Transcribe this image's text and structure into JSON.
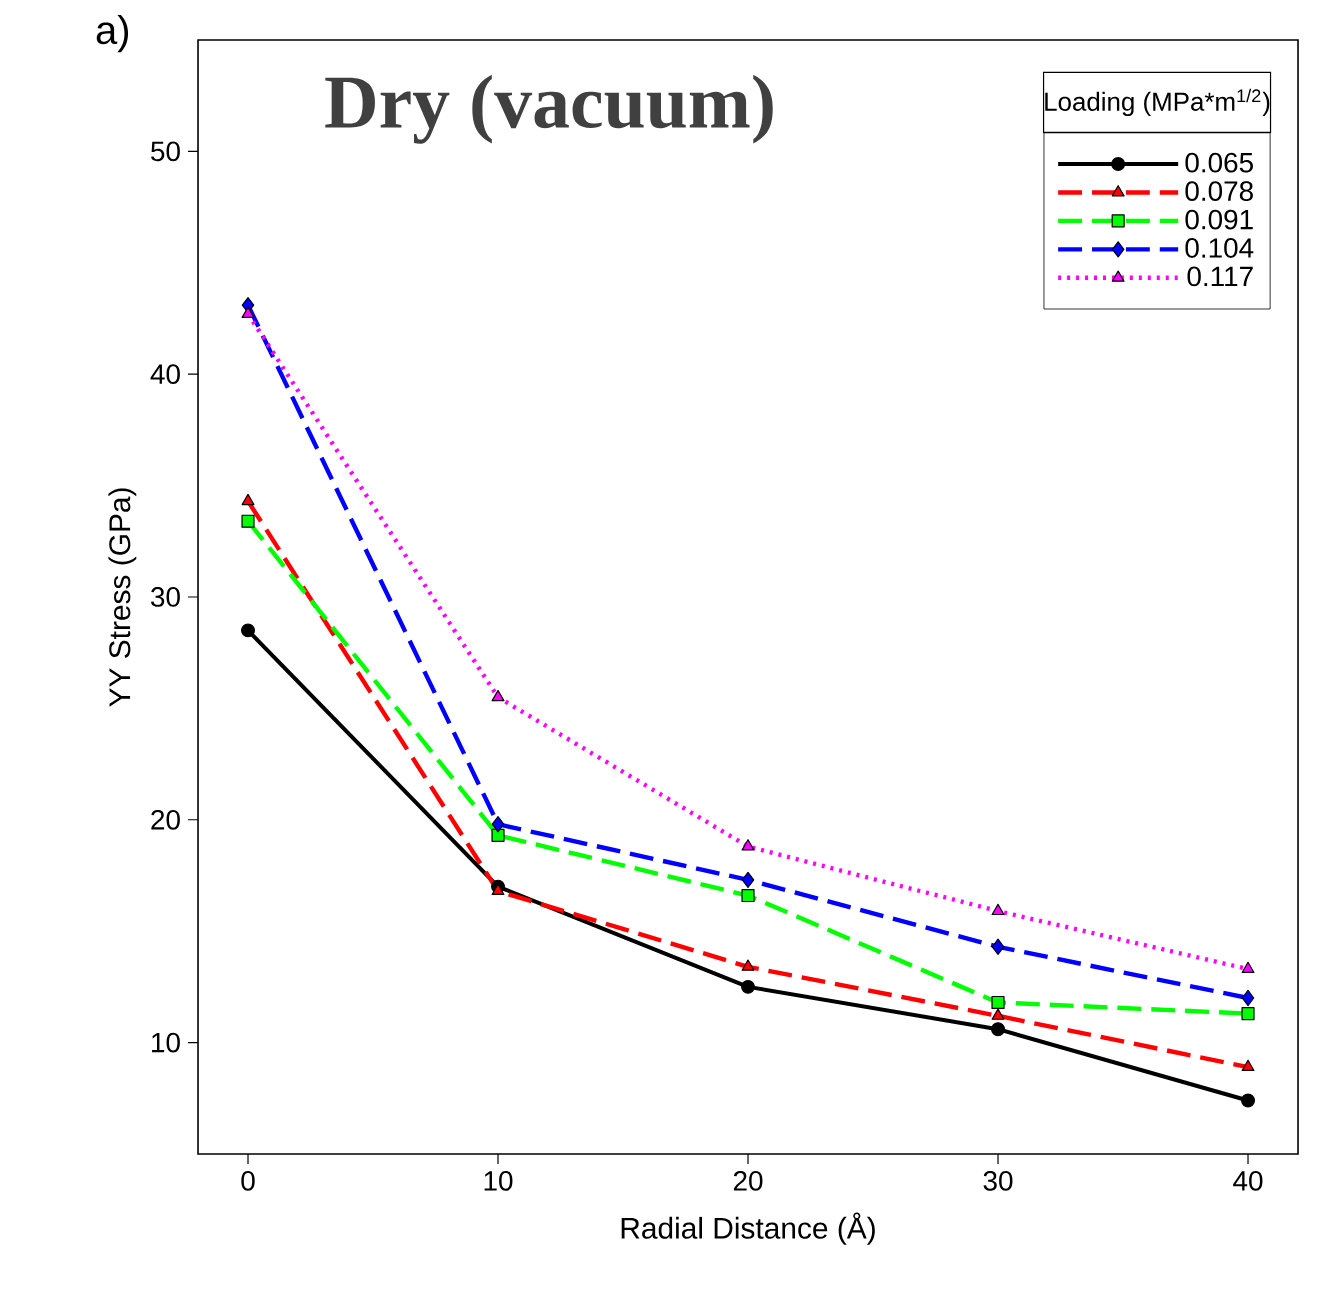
{
  "chart_data": {
    "type": "line",
    "title": "Dry (vacuum)",
    "xlabel": "Radial Distance (Å)",
    "ylabel": "YY Stress (GPa)",
    "legend_title": "Loading (MPa*m$^{1/2}$)",
    "annotations": [
      "a)"
    ],
    "x": [
      0,
      10,
      20,
      30,
      40
    ],
    "xlim": [
      -2,
      42
    ],
    "ylim": [
      5,
      55
    ],
    "xticks": [
      0,
      10,
      20,
      30,
      40
    ],
    "yticks": [
      10,
      20,
      30,
      40,
      50
    ],
    "grid": false,
    "legend": "top right",
    "series": [
      {
        "name": "0.065",
        "color": "#000000",
        "marker": "circle",
        "line_style": "solid",
        "values": [
          28.5,
          17.0,
          12.5,
          10.6,
          7.4
        ]
      },
      {
        "name": "0.078",
        "color": "#ff0000",
        "marker": "triangle-down",
        "line_style": "dashed",
        "values": [
          34.3,
          16.8,
          13.4,
          11.2,
          8.9
        ]
      },
      {
        "name": "0.091",
        "color": "#00ff00",
        "marker": "square",
        "line_style": "dashed",
        "values": [
          33.4,
          19.3,
          16.6,
          11.8,
          11.3
        ]
      },
      {
        "name": "0.104",
        "color": "#0000ff",
        "marker": "diamond",
        "line_style": "dashed",
        "values": [
          43.1,
          19.8,
          17.3,
          14.3,
          12.0
        ]
      },
      {
        "name": "0.117",
        "color": "#ff00ff",
        "marker": "triangle",
        "line_style": "dotted",
        "values": [
          42.7,
          25.5,
          18.8,
          15.9,
          13.3
        ]
      }
    ]
  }
}
